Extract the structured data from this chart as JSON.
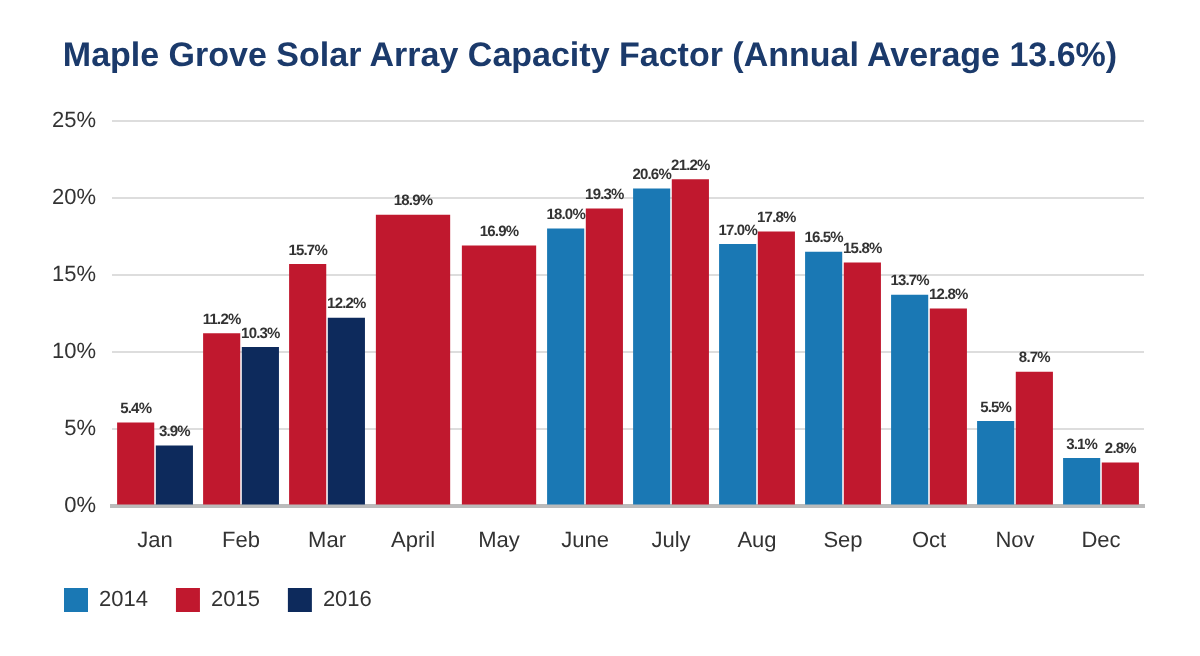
{
  "chart_data": {
    "type": "bar",
    "title": "Maple Grove Solar Array Capacity Factor (Annual Average 13.6%)",
    "categories": [
      "Jan",
      "Feb",
      "Mar",
      "April",
      "May",
      "June",
      "July",
      "Aug",
      "Sep",
      "Oct",
      "Nov",
      "Dec"
    ],
    "series": [
      {
        "name": "2014",
        "color": "#1a78b4",
        "values": [
          null,
          null,
          null,
          null,
          null,
          18.0,
          20.6,
          17.0,
          16.5,
          13.7,
          5.5,
          3.1
        ],
        "value_labels": [
          null,
          null,
          null,
          null,
          null,
          "18.0%",
          "20.6%",
          "17.0%",
          "16.5%",
          "13.7%",
          "5.5%",
          "3.1%"
        ]
      },
      {
        "name": "2015",
        "color": "#c0182e",
        "values": [
          5.4,
          11.2,
          15.7,
          18.9,
          16.9,
          19.3,
          21.2,
          17.8,
          15.8,
          12.8,
          8.7,
          2.8
        ],
        "value_labels": [
          "5.4%",
          "11.2%",
          "15.7%",
          "18.9%",
          "16.9%",
          "19.3%",
          "21.2%",
          "17.8%",
          "15.8%",
          "12.8%",
          "8.7%",
          "2.8%"
        ]
      },
      {
        "name": "2016",
        "color": "#0d2a5c",
        "values": [
          3.9,
          10.3,
          12.2,
          null,
          null,
          null,
          null,
          null,
          null,
          null,
          null,
          null
        ],
        "value_labels": [
          "3.9%",
          "10.3%",
          "12.2%",
          null,
          null,
          null,
          null,
          null,
          null,
          null,
          null,
          null
        ]
      }
    ],
    "ylim": [
      0,
      25
    ],
    "yticks": [
      {
        "value": 0,
        "label": "0%"
      },
      {
        "value": 5,
        "label": "5%"
      },
      {
        "value": 10,
        "label": "10%"
      },
      {
        "value": 15,
        "label": "15%"
      },
      {
        "value": 20,
        "label": "20%"
      },
      {
        "value": 25,
        "label": "25%"
      }
    ],
    "grid": "y",
    "legend": "bottom left"
  }
}
